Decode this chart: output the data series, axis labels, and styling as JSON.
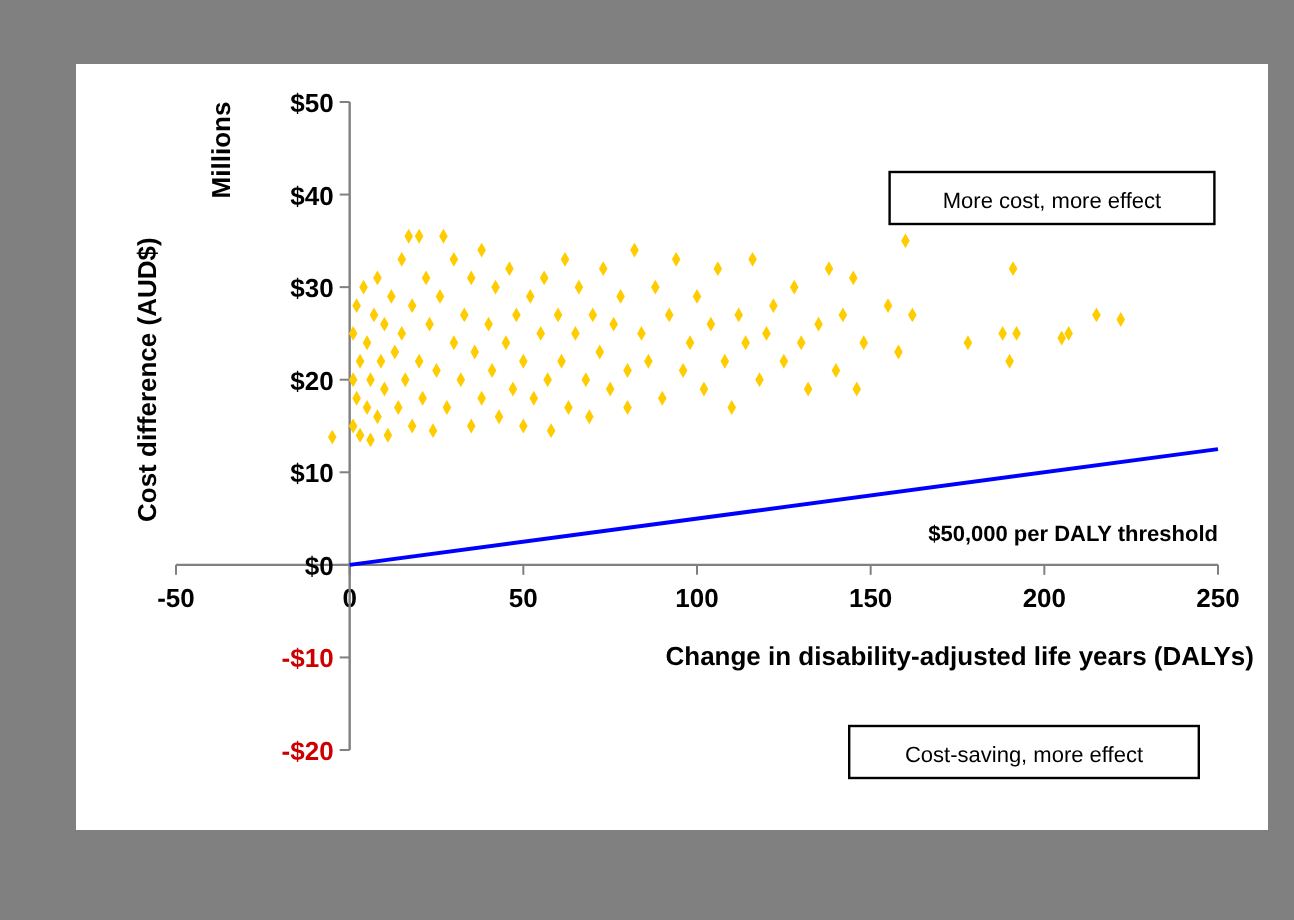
{
  "chart_data": {
    "type": "scatter",
    "xlabel": "Change in disability-adjusted  life years (DALYs)",
    "ylabel": "Cost difference (AUD$)",
    "annotations": [
      "Millions",
      "More cost, more effect",
      "Cost-saving, more effect"
    ],
    "xlim": [
      -50,
      250
    ],
    "xticks": [
      -50,
      0,
      50,
      100,
      150,
      200,
      250
    ],
    "ylim": [
      -20,
      50
    ],
    "yticks": [
      {
        "value": -20,
        "label": "-$20"
      },
      {
        "value": -10,
        "label": "-$10"
      },
      {
        "value": 0,
        "label": "$0"
      },
      {
        "value": 10,
        "label": "$10"
      },
      {
        "value": 20,
        "label": "$20"
      },
      {
        "value": 30,
        "label": "$30"
      },
      {
        "value": 40,
        "label": "$40"
      },
      {
        "value": 50,
        "label": "$50"
      }
    ],
    "grid": false,
    "marker": "diamond",
    "series": [
      {
        "color": "#ffcc00",
        "x": [
          -5,
          1,
          1,
          1,
          2,
          2,
          3,
          3,
          4,
          5,
          5,
          6,
          6,
          7,
          8,
          8,
          9,
          10,
          10,
          11,
          12,
          13,
          14,
          15,
          15,
          16,
          17,
          18,
          18,
          20,
          20,
          21,
          22,
          23,
          24,
          25,
          26,
          27,
          28,
          30,
          30,
          32,
          33,
          35,
          35,
          36,
          38,
          38,
          40,
          41,
          42,
          43,
          45,
          46,
          47,
          48,
          50,
          50,
          52,
          53,
          55,
          56,
          57,
          58,
          60,
          61,
          62,
          63,
          65,
          66,
          68,
          69,
          70,
          72,
          73,
          75,
          76,
          78,
          80,
          80,
          82,
          84,
          86,
          88,
          90,
          92,
          94,
          96,
          98,
          100,
          102,
          104,
          106,
          108,
          110,
          112,
          114,
          116,
          118,
          120,
          122,
          125,
          128,
          130,
          132,
          135,
          138,
          140,
          142,
          145,
          146,
          148,
          155,
          158,
          160,
          162,
          178,
          188,
          190,
          191,
          192,
          205,
          207,
          215,
          222
        ],
        "values": [
          13.8,
          15,
          20,
          25,
          18,
          28,
          14,
          22,
          30,
          17,
          24,
          13.5,
          20,
          27,
          16,
          31,
          22,
          19,
          26,
          14,
          29,
          23,
          17,
          33,
          25,
          20,
          35.5,
          15,
          28,
          22,
          35.5,
          18,
          31,
          26,
          14.5,
          21,
          29,
          35.5,
          17,
          24,
          33,
          20,
          27,
          15,
          31,
          23,
          18,
          34,
          26,
          21,
          30,
          16,
          24,
          32,
          19,
          27,
          22,
          15,
          29,
          18,
          25,
          31,
          20,
          14.5,
          27,
          22,
          33,
          17,
          25,
          30,
          20,
          16,
          27,
          23,
          32,
          19,
          26,
          29,
          21,
          17,
          34,
          25,
          22,
          30,
          18,
          27,
          33,
          21,
          24,
          29,
          19,
          26,
          32,
          22,
          17,
          27,
          24,
          33,
          20,
          25,
          28,
          22,
          30,
          24,
          19,
          26,
          32,
          21,
          27,
          31,
          19,
          24,
          28,
          23,
          35,
          27,
          24,
          25,
          22,
          32,
          25,
          24.5,
          25,
          27,
          26.5
        ]
      },
      {
        "type": "line",
        "name": "$50,000 per DALY threshold",
        "color": "#0000ff",
        "marker": "none",
        "line_style": "solid",
        "x": [
          0,
          250
        ],
        "values": [
          0,
          12.5
        ]
      }
    ]
  }
}
